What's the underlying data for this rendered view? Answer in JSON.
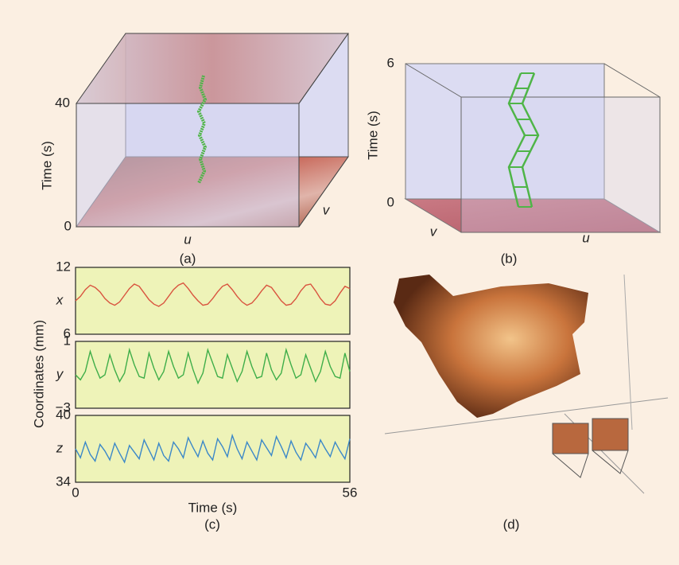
{
  "panels": {
    "a": {
      "caption": "(a)",
      "zlabel": "Time (s)",
      "zticks": [
        40,
        0
      ],
      "ulabel": "u",
      "vlabel": "v"
    },
    "b": {
      "caption": "(b)",
      "zlabel": "Time (s)",
      "zticks": [
        6,
        0
      ],
      "ulabel": "u",
      "vlabel": "v"
    },
    "c": {
      "caption": "(c)",
      "ylabel": "Coordinates (mm)"
    },
    "d": {
      "caption": "(d)"
    }
  },
  "chart_data": [
    {
      "type": "line",
      "ylabel": "x",
      "ylim": [
        6,
        12
      ],
      "yticks": [
        6,
        12
      ],
      "xlim": [
        0,
        56
      ],
      "x": [
        0,
        1,
        2,
        3,
        4,
        5,
        6,
        7,
        8,
        9,
        10,
        11,
        12,
        13,
        14,
        15,
        16,
        17,
        18,
        19,
        20,
        21,
        22,
        23,
        24,
        25,
        26,
        27,
        28,
        29,
        30,
        31,
        32,
        33,
        34,
        35,
        36,
        37,
        38,
        39,
        40,
        41,
        42,
        43,
        44,
        45,
        46,
        47,
        48,
        49,
        50,
        51,
        52,
        53,
        54,
        55,
        56
      ],
      "series": [
        {
          "color": "#d9543f",
          "values": [
            9.0,
            9.4,
            10.0,
            10.4,
            10.2,
            9.8,
            9.2,
            8.8,
            8.6,
            8.9,
            9.5,
            10.1,
            10.5,
            10.3,
            9.7,
            9.1,
            8.7,
            8.5,
            8.8,
            9.4,
            10.0,
            10.4,
            10.6,
            10.1,
            9.5,
            9.0,
            8.6,
            8.7,
            9.2,
            9.8,
            10.3,
            10.5,
            10.0,
            9.4,
            8.9,
            8.6,
            8.8,
            9.3,
            9.9,
            10.4,
            10.2,
            9.6,
            9.0,
            8.6,
            8.7,
            9.2,
            9.9,
            10.4,
            10.5,
            9.9,
            9.2,
            8.7,
            8.6,
            9.0,
            9.7,
            10.3,
            10.1
          ]
        }
      ]
    },
    {
      "type": "line",
      "ylabel": "y",
      "ylim": [
        -3,
        1
      ],
      "yticks": [
        {
          "value": -3,
          "label": "−3"
        },
        1
      ],
      "xlim": [
        0,
        56
      ],
      "x": [
        0,
        1,
        2,
        3,
        4,
        5,
        6,
        7,
        8,
        9,
        10,
        11,
        12,
        13,
        14,
        15,
        16,
        17,
        18,
        19,
        20,
        21,
        22,
        23,
        24,
        25,
        26,
        27,
        28,
        29,
        30,
        31,
        32,
        33,
        34,
        35,
        36,
        37,
        38,
        39,
        40,
        41,
        42,
        43,
        44,
        45,
        46,
        47,
        48,
        49,
        50,
        51,
        52,
        53,
        54,
        55,
        56
      ],
      "series": [
        {
          "color": "#3fae49",
          "values": [
            -1.0,
            -1.3,
            -0.8,
            0.4,
            -0.5,
            -1.2,
            -1.0,
            0.2,
            -0.7,
            -1.4,
            -0.9,
            0.5,
            -0.4,
            -1.1,
            -1.2,
            0.3,
            -0.6,
            -1.3,
            -0.8,
            0.4,
            -0.5,
            -1.2,
            -1.0,
            0.3,
            -0.7,
            -1.5,
            -0.9,
            0.5,
            -0.3,
            -1.1,
            -1.2,
            0.2,
            -0.6,
            -1.4,
            -0.8,
            0.4,
            -0.5,
            -1.2,
            -1.1,
            0.3,
            -0.7,
            -1.3,
            -0.9,
            0.5,
            -0.4,
            -1.2,
            -1.0,
            0.2,
            -0.6,
            -1.4,
            -0.8,
            0.4,
            -0.5,
            -1.1,
            -1.2,
            0.3,
            -0.8
          ]
        }
      ]
    },
    {
      "type": "line",
      "ylabel": "z",
      "ylim": [
        34,
        40
      ],
      "yticks": [
        34,
        40
      ],
      "xlim": [
        0,
        56
      ],
      "xticks": [
        0,
        56
      ],
      "xlabel": "Time (s)",
      "x": [
        0,
        1,
        2,
        3,
        4,
        5,
        6,
        7,
        8,
        9,
        10,
        11,
        12,
        13,
        14,
        15,
        16,
        17,
        18,
        19,
        20,
        21,
        22,
        23,
        24,
        25,
        26,
        27,
        28,
        29,
        30,
        31,
        32,
        33,
        34,
        35,
        36,
        37,
        38,
        39,
        40,
        41,
        42,
        43,
        44,
        45,
        46,
        47,
        48,
        49,
        50,
        51,
        52,
        53,
        54,
        55,
        56
      ],
      "series": [
        {
          "color": "#3b88c8",
          "values": [
            37.0,
            36.2,
            37.6,
            36.5,
            35.9,
            37.4,
            36.8,
            36.0,
            37.5,
            36.6,
            35.8,
            37.3,
            36.7,
            36.1,
            37.8,
            36.9,
            36.0,
            37.5,
            36.4,
            35.9,
            37.6,
            37.0,
            36.2,
            38.0,
            37.1,
            36.3,
            37.7,
            36.6,
            36.0,
            37.9,
            37.2,
            36.3,
            38.2,
            37.0,
            36.1,
            37.6,
            36.8,
            36.0,
            37.8,
            37.1,
            36.4,
            38.1,
            37.2,
            36.2,
            37.7,
            36.7,
            36.0,
            37.5,
            36.9,
            36.2,
            37.8,
            37.0,
            36.3,
            37.6,
            36.8,
            36.1,
            37.9
          ]
        }
      ]
    }
  ]
}
